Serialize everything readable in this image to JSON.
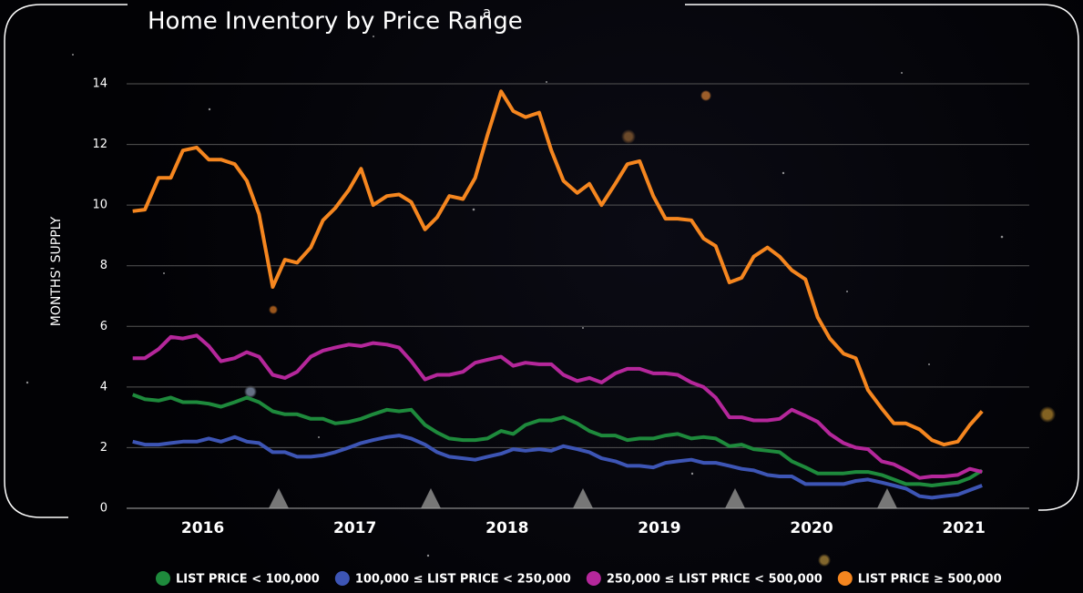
{
  "chart_data": {
    "type": "line",
    "title": "Home Inventory by Price Range",
    "title_note": "a",
    "y_label": "MONTHS' SUPPLY",
    "xlim": [
      2016,
      2021.9
    ],
    "xticks": [
      {
        "value": 2016.5,
        "label": "2016"
      },
      {
        "value": 2017.5,
        "label": "2017"
      },
      {
        "value": 2018.5,
        "label": "2018"
      },
      {
        "value": 2019.5,
        "label": "2019"
      },
      {
        "value": 2020.5,
        "label": "2020"
      },
      {
        "value": 2021.5,
        "label": "2021"
      }
    ],
    "ylim": [
      0,
      14
    ],
    "yticks": [
      0,
      2,
      4,
      6,
      8,
      10,
      12,
      14
    ],
    "grid": true,
    "legend": "bottom",
    "x": [
      2016.04,
      2016.12,
      2016.21,
      2016.29,
      2016.37,
      2016.46,
      2016.54,
      2016.62,
      2016.71,
      2016.79,
      2016.87,
      2016.96,
      2017.04,
      2017.12,
      2017.21,
      2017.29,
      2017.37,
      2017.46,
      2017.54,
      2017.62,
      2017.71,
      2017.79,
      2017.87,
      2017.96,
      2018.04,
      2018.12,
      2018.21,
      2018.29,
      2018.37,
      2018.46,
      2018.54,
      2018.62,
      2018.71,
      2018.79,
      2018.87,
      2018.96,
      2019.04,
      2019.12,
      2019.21,
      2019.29,
      2019.37,
      2019.46,
      2019.54,
      2019.62,
      2019.71,
      2019.79,
      2019.87,
      2019.96,
      2020.04,
      2020.12,
      2020.21,
      2020.29,
      2020.37,
      2020.46,
      2020.54,
      2020.62,
      2020.71,
      2020.79,
      2020.87,
      2020.96,
      2021.04,
      2021.12,
      2021.21,
      2021.29,
      2021.37,
      2021.46,
      2021.54,
      2021.62
    ],
    "series": [
      {
        "name": "LIST PRICE < 100,000",
        "color": "#1e8a3c",
        "values": [
          3.75,
          3.6,
          3.55,
          3.65,
          3.5,
          3.5,
          3.45,
          3.35,
          3.5,
          3.65,
          3.5,
          3.2,
          3.1,
          3.1,
          2.95,
          2.95,
          2.8,
          2.85,
          2.95,
          3.1,
          3.25,
          3.2,
          3.25,
          2.75,
          2.5,
          2.3,
          2.25,
          2.25,
          2.3,
          2.55,
          2.45,
          2.75,
          2.9,
          2.9,
          3.0,
          2.8,
          2.55,
          2.4,
          2.4,
          2.25,
          2.3,
          2.3,
          2.4,
          2.45,
          2.3,
          2.35,
          2.3,
          2.05,
          2.1,
          1.95,
          1.9,
          1.85,
          1.55,
          1.35,
          1.15,
          1.15,
          1.15,
          1.2,
          1.2,
          1.1,
          0.95,
          0.8,
          0.8,
          0.75,
          0.8,
          0.85,
          1.0,
          1.25
        ]
      },
      {
        "name": "100,000 ≤ LIST PRICE < 250,000",
        "color": "#3d55b5",
        "values": [
          2.2,
          2.1,
          2.1,
          2.15,
          2.2,
          2.2,
          2.3,
          2.2,
          2.35,
          2.2,
          2.15,
          1.85,
          1.85,
          1.7,
          1.7,
          1.75,
          1.85,
          2.0,
          2.15,
          2.25,
          2.35,
          2.4,
          2.3,
          2.1,
          1.85,
          1.7,
          1.65,
          1.6,
          1.7,
          1.8,
          1.95,
          1.9,
          1.95,
          1.9,
          2.05,
          1.95,
          1.85,
          1.65,
          1.55,
          1.4,
          1.4,
          1.35,
          1.5,
          1.55,
          1.6,
          1.5,
          1.5,
          1.4,
          1.3,
          1.25,
          1.1,
          1.05,
          1.05,
          0.8,
          0.8,
          0.8,
          0.8,
          0.9,
          0.95,
          0.85,
          0.75,
          0.65,
          0.4,
          0.35,
          0.4,
          0.45,
          0.6,
          0.75
        ]
      },
      {
        "name": "250,000 ≤ LIST PRICE < 500,000",
        "color": "#b5279b",
        "values": [
          4.95,
          4.95,
          5.25,
          5.65,
          5.6,
          5.7,
          5.35,
          4.85,
          4.95,
          5.15,
          5.0,
          4.4,
          4.3,
          4.5,
          5.0,
          5.2,
          5.3,
          5.4,
          5.35,
          5.45,
          5.4,
          5.3,
          4.85,
          4.25,
          4.4,
          4.4,
          4.5,
          4.8,
          4.9,
          5.0,
          4.7,
          4.8,
          4.75,
          4.75,
          4.4,
          4.2,
          4.3,
          4.15,
          4.45,
          4.6,
          4.6,
          4.45,
          4.45,
          4.4,
          4.15,
          4.0,
          3.65,
          3.0,
          3.0,
          2.9,
          2.9,
          2.95,
          3.25,
          3.05,
          2.85,
          2.45,
          2.15,
          2.0,
          1.95,
          1.55,
          1.45,
          1.25,
          1.0,
          1.05,
          1.05,
          1.1,
          1.3,
          1.2
        ]
      },
      {
        "name": "LIST PRICE ≥ 500,000",
        "color": "#f5861f",
        "values": [
          9.8,
          9.85,
          10.9,
          10.9,
          11.8,
          11.9,
          11.5,
          11.5,
          11.35,
          10.8,
          9.7,
          7.3,
          8.2,
          8.1,
          8.6,
          9.5,
          9.9,
          10.5,
          11.2,
          10.0,
          10.3,
          10.35,
          10.1,
          9.2,
          9.6,
          10.3,
          10.2,
          10.9,
          12.3,
          13.75,
          13.1,
          12.9,
          13.05,
          11.8,
          10.8,
          10.4,
          10.7,
          10.0,
          10.7,
          11.35,
          11.45,
          10.3,
          9.55,
          9.55,
          9.5,
          8.9,
          8.65,
          7.45,
          7.6,
          8.3,
          8.6,
          8.3,
          7.85,
          7.55,
          6.3,
          5.6,
          5.1,
          4.95,
          3.9,
          3.3,
          2.8,
          2.8,
          2.6,
          2.25,
          2.1,
          2.2,
          2.75,
          3.2
        ]
      }
    ]
  }
}
